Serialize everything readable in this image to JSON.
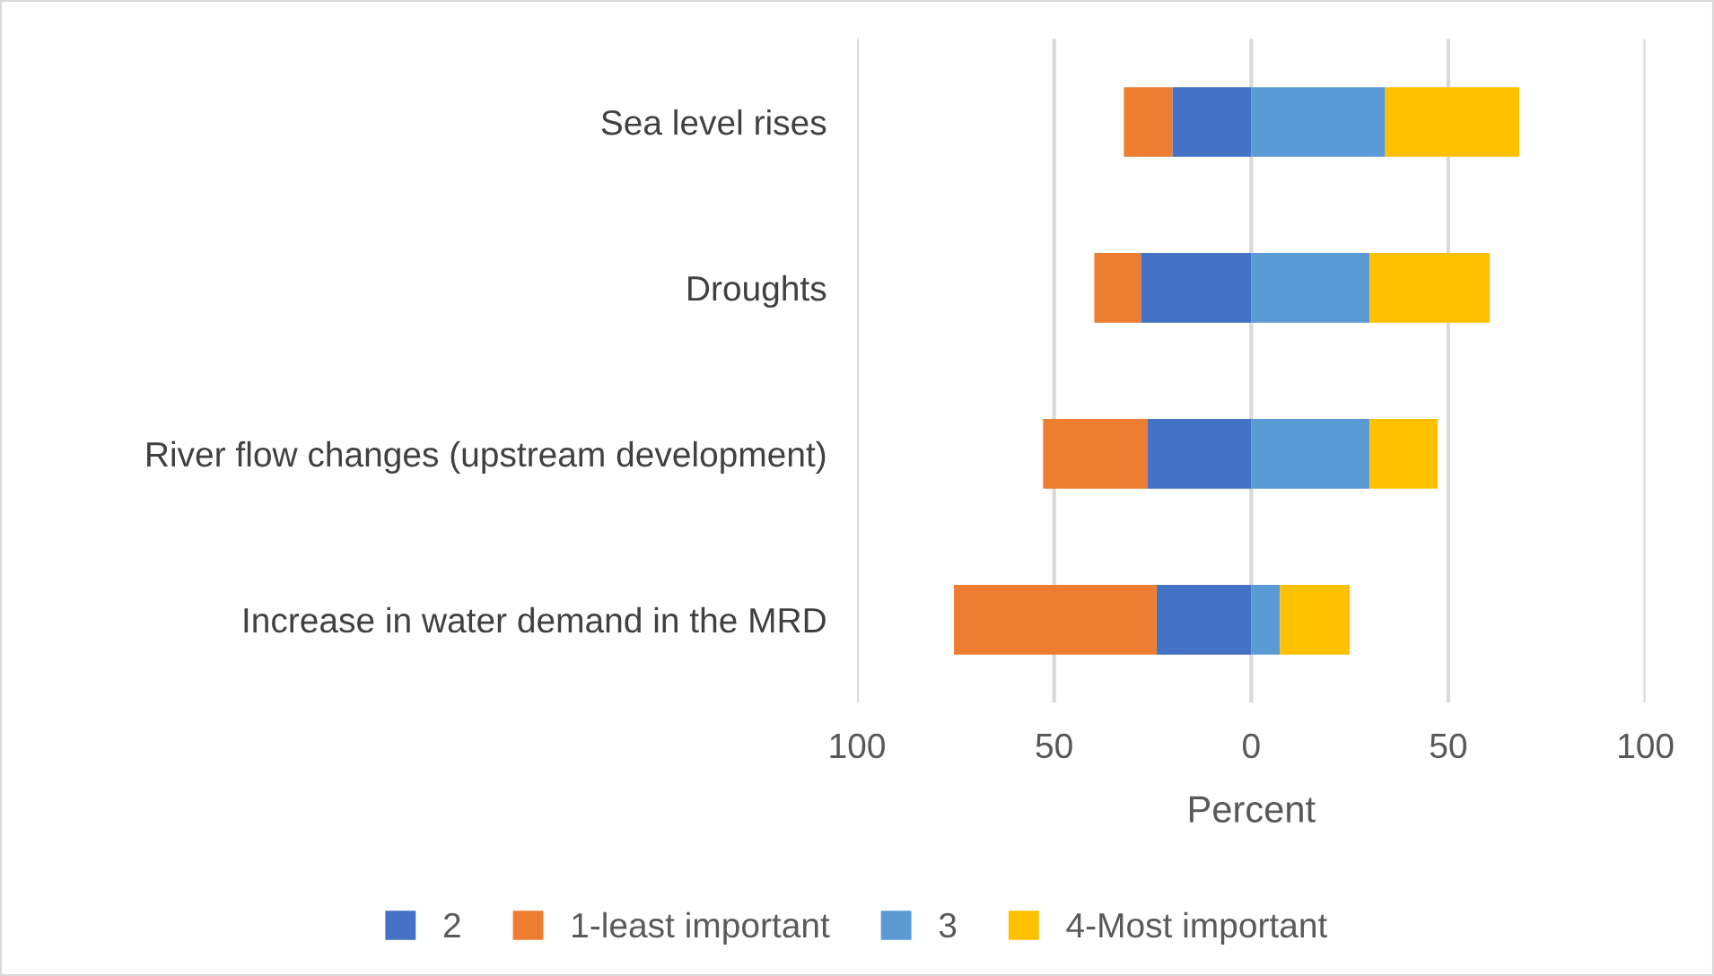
{
  "chart_data": {
    "type": "bar",
    "orientation": "horizontal",
    "stacked": true,
    "xlabel": "Percent",
    "categories": [
      "Sea level rises",
      "Droughts",
      "River flow changes (upstream development)",
      "Increase in water demand in the MRD"
    ],
    "series": [
      {
        "name": "2",
        "color": "#4472c4",
        "values": [
          -20,
          -28,
          -26.4,
          -24
        ]
      },
      {
        "name": "1-least important",
        "color": "#ed7d31",
        "values": [
          -12.3,
          -11.8,
          -26.4,
          -51.4
        ]
      },
      {
        "name": "3",
        "color": "#5b9bd5",
        "values": [
          34,
          30,
          30,
          7.3
        ]
      },
      {
        "name": "4-Most important",
        "color": "#ffc000",
        "values": [
          34,
          30.5,
          17.3,
          17.7
        ]
      }
    ],
    "xlim": [
      -100,
      100
    ],
    "xticks": [
      {
        "value": -100,
        "label": "100"
      },
      {
        "value": -50,
        "label": "50"
      },
      0,
      50,
      100
    ],
    "grid": "x",
    "legend": "bottom"
  }
}
